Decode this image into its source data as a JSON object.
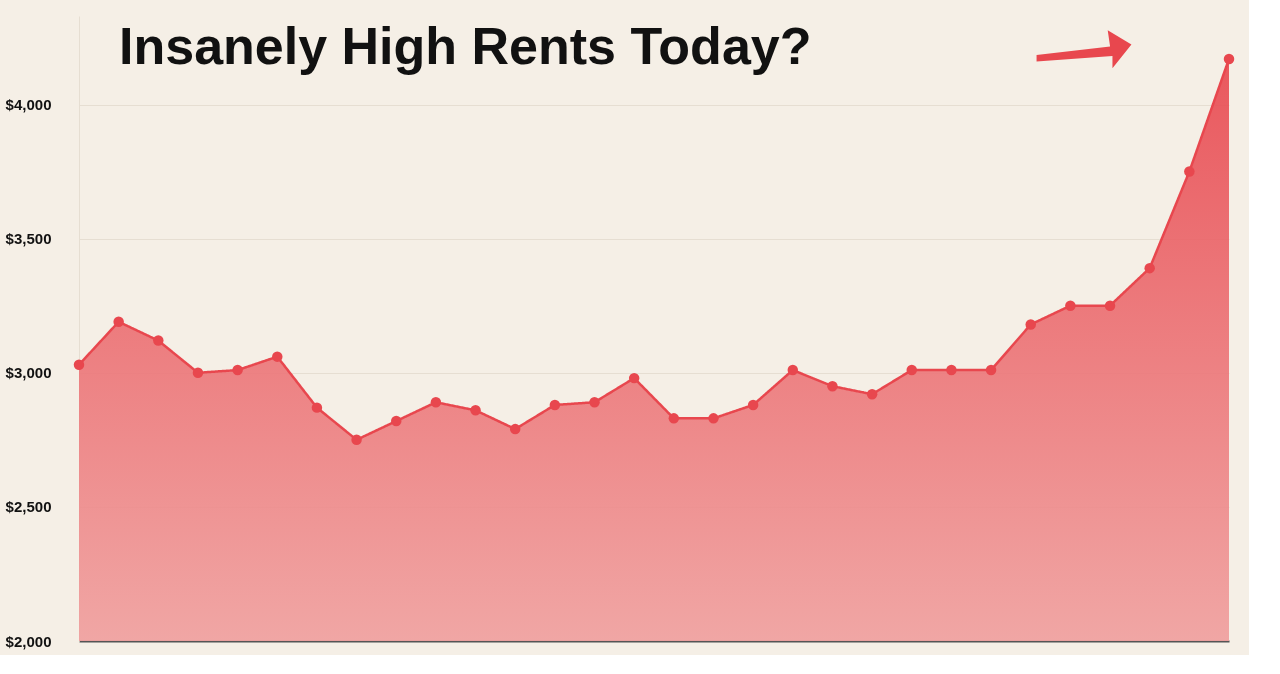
{
  "chart_data": {
    "type": "area",
    "categories": [
      null,
      null,
      null,
      null,
      null,
      null,
      null,
      null,
      null,
      null,
      null,
      null,
      null,
      null,
      null,
      null,
      null,
      null,
      null,
      null,
      null,
      null,
      null,
      null,
      null,
      null,
      null,
      null,
      null,
      null
    ],
    "series": [
      {
        "color": "#e8474e",
        "values": [
          3030,
          3190,
          3120,
          3000,
          3010,
          3060,
          2870,
          2750,
          2820,
          2890,
          2860,
          2790,
          2880,
          2890,
          2980,
          2830,
          2830,
          2880,
          3010,
          2950,
          2920,
          3010,
          3010,
          3010,
          3180,
          3250,
          3250,
          3390,
          3750,
          4170
        ]
      }
    ],
    "ylim": [
      2000,
      4330
    ],
    "yticks": [
      {
        "value": 2000,
        "label": "$2,000"
      },
      {
        "value": 2500,
        "label": "$2,500"
      },
      {
        "value": 3000,
        "label": "$3,000"
      },
      {
        "value": 3500,
        "label": "$3,500"
      },
      {
        "value": 4000,
        "label": "$4,000"
      }
    ],
    "grid": "y",
    "tick_labels": "y",
    "marker": "circle",
    "annotations": [
      "Insanely High Rents Today?"
    ]
  }
}
